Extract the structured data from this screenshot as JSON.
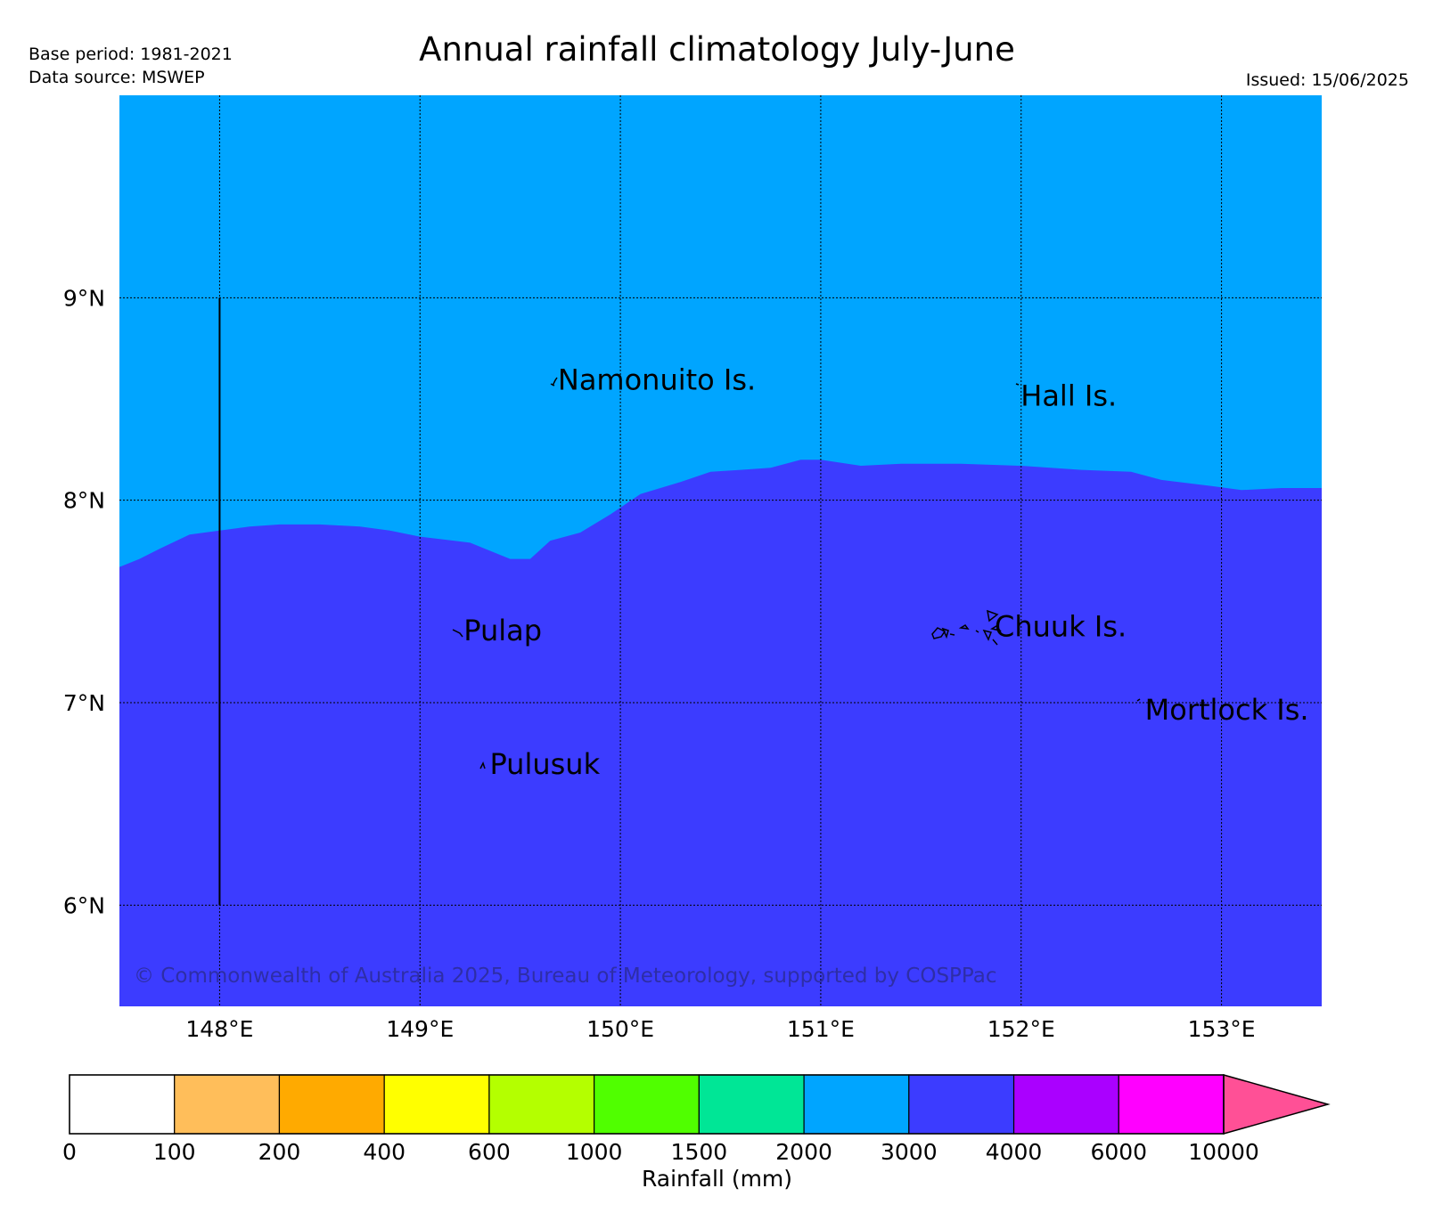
{
  "header": {
    "title": "Annual rainfall climatology July-June",
    "base_period": "Base period: 1981-2021",
    "data_source": "Data source: MSWEP",
    "issued": "Issued: 15/06/2025"
  },
  "map": {
    "lon_range": [
      147.5,
      153.5
    ],
    "lat_range": [
      5.5,
      10.0
    ],
    "lat_ticks": [
      {
        "value": 9,
        "label": "9°N"
      },
      {
        "value": 8,
        "label": "8°N"
      },
      {
        "value": 7,
        "label": "7°N"
      },
      {
        "value": 6,
        "label": "6°N"
      }
    ],
    "lon_ticks": [
      {
        "value": 148,
        "label": "148°E"
      },
      {
        "value": 149,
        "label": "149°E"
      },
      {
        "value": 150,
        "label": "150°E"
      },
      {
        "value": 151,
        "label": "151°E"
      },
      {
        "value": 152,
        "label": "152°E"
      },
      {
        "value": 153,
        "label": "153°E"
      }
    ],
    "regions": {
      "north_class": "2000-3000 mm",
      "north_color": "#00a5ff",
      "south_class": "3000-4000 mm",
      "south_color": "#3c3cff"
    },
    "class_boundary": [
      [
        147.5,
        7.67
      ],
      [
        147.6,
        7.71
      ],
      [
        147.7,
        7.76
      ],
      [
        147.85,
        7.83
      ],
      [
        148.0,
        7.85
      ],
      [
        148.15,
        7.87
      ],
      [
        148.3,
        7.88
      ],
      [
        148.5,
        7.88
      ],
      [
        148.7,
        7.87
      ],
      [
        148.85,
        7.85
      ],
      [
        149.0,
        7.82
      ],
      [
        149.25,
        7.79
      ],
      [
        149.35,
        7.75
      ],
      [
        149.45,
        7.71
      ],
      [
        149.55,
        7.71
      ],
      [
        149.65,
        7.8
      ],
      [
        149.8,
        7.84
      ],
      [
        149.95,
        7.93
      ],
      [
        150.1,
        8.03
      ],
      [
        150.3,
        8.09
      ],
      [
        150.45,
        8.14
      ],
      [
        150.6,
        8.15
      ],
      [
        150.75,
        8.16
      ],
      [
        150.9,
        8.2
      ],
      [
        151.0,
        8.2
      ],
      [
        151.2,
        8.17
      ],
      [
        151.4,
        8.18
      ],
      [
        151.7,
        8.18
      ],
      [
        152.0,
        8.17
      ],
      [
        152.3,
        8.15
      ],
      [
        152.55,
        8.14
      ],
      [
        152.7,
        8.1
      ],
      [
        152.95,
        8.07
      ],
      [
        153.1,
        8.05
      ],
      [
        153.3,
        8.06
      ],
      [
        153.5,
        8.06
      ]
    ],
    "vertical_line": {
      "lon": 148.0,
      "lat_from": 6.0,
      "lat_to": 9.0
    },
    "places": [
      {
        "name": "Namonuito Is.",
        "lon": 149.67,
        "lat": 8.6
      },
      {
        "name": "Hall Is.",
        "lon": 151.98,
        "lat": 8.52
      },
      {
        "name": "Pulap",
        "lon": 149.2,
        "lat": 7.36
      },
      {
        "name": "Chuuk Is.",
        "lon": 151.85,
        "lat": 7.38
      },
      {
        "name": "Mortlock Is.",
        "lon": 152.6,
        "lat": 6.97
      },
      {
        "name": "Pulusuk",
        "lon": 149.33,
        "lat": 6.7
      }
    ],
    "copyright": "© Commonwealth of Australia 2025, Bureau of Meteorology, supported by COSPPac"
  },
  "colorbar": {
    "label": "Rainfall (mm)",
    "ticks": [
      "0",
      "100",
      "200",
      "400",
      "600",
      "1000",
      "1500",
      "2000",
      "3000",
      "4000",
      "6000",
      "10000"
    ],
    "colors": [
      "#ffffff",
      "#ffbe5a",
      "#ffaa00",
      "#ffff00",
      "#b4ff00",
      "#50ff00",
      "#00e696",
      "#00a5ff",
      "#3c3cff",
      "#aa00ff",
      "#ff00ff"
    ],
    "extend_color": "#ff5096"
  }
}
